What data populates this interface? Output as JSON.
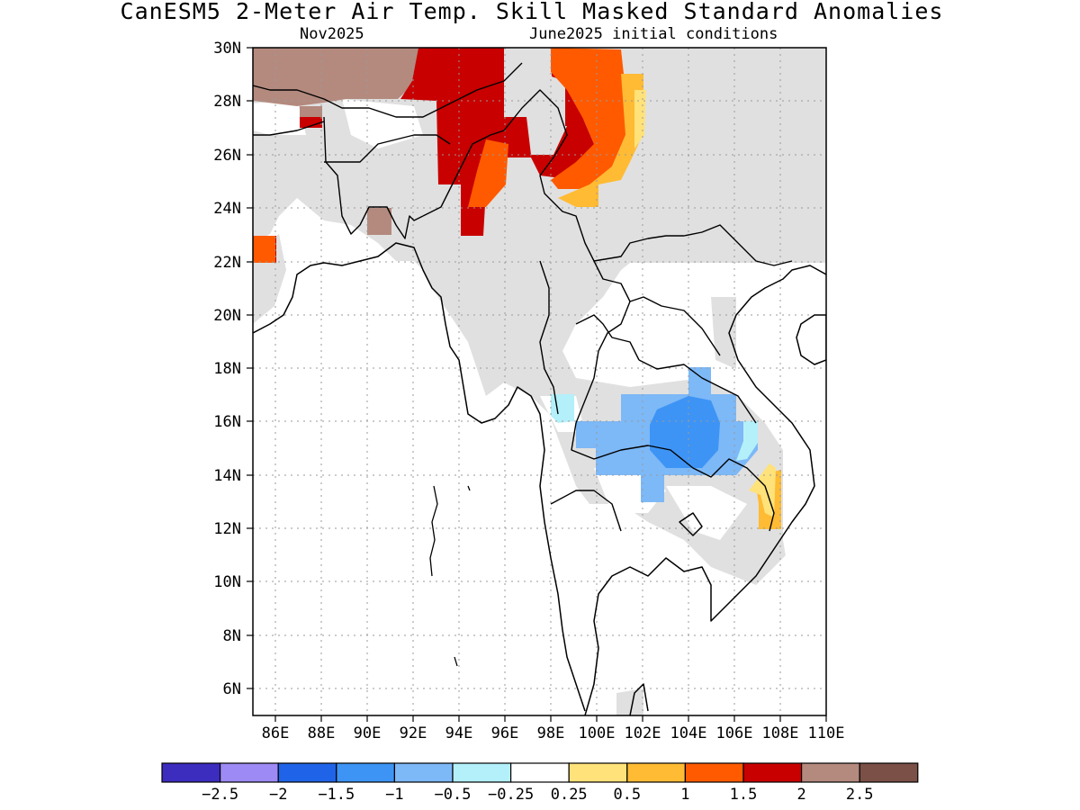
{
  "title": "CanESM5 2-Meter Air Temp. Skill Masked Standard Anomalies",
  "subtitle_left": "Nov2025",
  "subtitle_right": "June2025 initial conditions",
  "map": {
    "lon_range": [
      85,
      110
    ],
    "lat_range": [
      5,
      30
    ],
    "x_ticks": [
      "86E",
      "88E",
      "90E",
      "92E",
      "94E",
      "96E",
      "98E",
      "100E",
      "102E",
      "104E",
      "106E",
      "108E",
      "110E"
    ],
    "y_ticks": [
      "6N",
      "8N",
      "10N",
      "12N",
      "14N",
      "16N",
      "18N",
      "20N",
      "22N",
      "24N",
      "26N",
      "28N",
      "30N"
    ],
    "gridlines": "dotted",
    "fill_colors": {
      "no_skill": "#e0e0e0",
      "red": "#c80000",
      "orange": "#ff5a00",
      "light_orange": "#ffbb33",
      "yellow": "#ffe27a",
      "brown": "#b48a7e",
      "blue": "#3d94f5",
      "light_blue": "#7db8f7",
      "cyan": "#b4f0fa"
    }
  },
  "colorbar": {
    "colors": [
      "#3c2dbf",
      "#9d8af5",
      "#1f64e8",
      "#3d94f5",
      "#7db8f7",
      "#b4f0fa",
      "#ffffff",
      "#ffe27a",
      "#ffbb33",
      "#ff5a00",
      "#c80000",
      "#b48a7e",
      "#7a5047"
    ],
    "labels": [
      "−2.5",
      "−2",
      "−1.5",
      "−1",
      "−0.5",
      "−0.25",
      "0.25",
      "0.5",
      "1",
      "1.5",
      "2",
      "2.5"
    ]
  }
}
